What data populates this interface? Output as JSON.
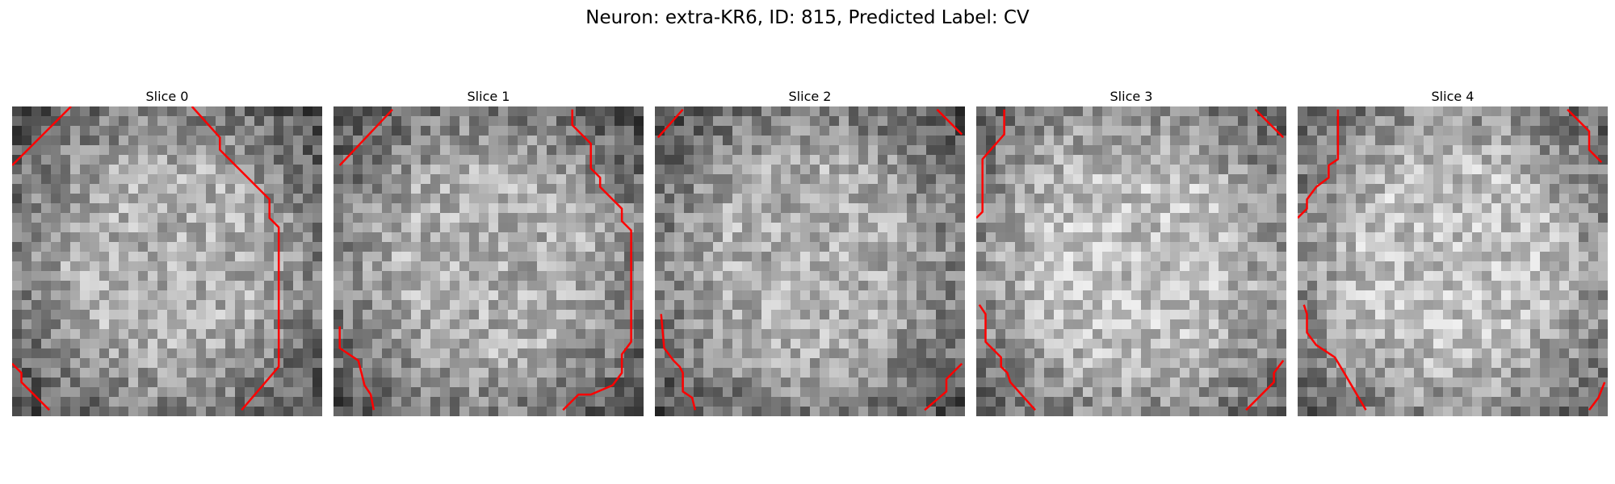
{
  "figure": {
    "title": "Neuron: extra-KR6, ID: 815, Predicted Label: CV"
  },
  "panels": [
    {
      "title": "Slice 0",
      "contours": [
        [
          [
            0.0,
            0.19
          ],
          [
            0.19,
            0.0
          ]
        ],
        [
          [
            0.58,
            0.0
          ],
          [
            0.67,
            0.1
          ],
          [
            0.67,
            0.14
          ],
          [
            0.83,
            0.3
          ],
          [
            0.83,
            0.36
          ],
          [
            0.86,
            0.39
          ],
          [
            0.86,
            0.84
          ],
          [
            0.74,
            0.98
          ]
        ],
        [
          [
            0.0,
            0.83
          ],
          [
            0.03,
            0.86
          ],
          [
            0.03,
            0.89
          ],
          [
            0.12,
            0.98
          ]
        ]
      ]
    },
    {
      "title": "Slice 1",
      "contours": [
        [
          [
            0.02,
            0.19
          ],
          [
            0.19,
            0.01
          ]
        ],
        [
          [
            0.77,
            0.01
          ],
          [
            0.77,
            0.06
          ],
          [
            0.83,
            0.12
          ],
          [
            0.83,
            0.2
          ],
          [
            0.86,
            0.23
          ],
          [
            0.86,
            0.26
          ],
          [
            0.93,
            0.33
          ],
          [
            0.93,
            0.37
          ],
          [
            0.96,
            0.4
          ],
          [
            0.96,
            0.76
          ],
          [
            0.93,
            0.8
          ],
          [
            0.93,
            0.86
          ],
          [
            0.9,
            0.9
          ],
          [
            0.83,
            0.93
          ],
          [
            0.79,
            0.93
          ],
          [
            0.74,
            0.98
          ]
        ],
        [
          [
            0.02,
            0.71
          ],
          [
            0.02,
            0.78
          ],
          [
            0.08,
            0.82
          ],
          [
            0.09,
            0.86
          ],
          [
            0.1,
            0.9
          ],
          [
            0.12,
            0.93
          ],
          [
            0.13,
            0.98
          ]
        ]
      ]
    },
    {
      "title": "Slice 2",
      "contours": [
        [
          [
            0.01,
            0.1
          ],
          [
            0.09,
            0.01
          ]
        ],
        [
          [
            0.91,
            0.01
          ],
          [
            0.99,
            0.09
          ]
        ],
        [
          [
            0.02,
            0.67
          ],
          [
            0.03,
            0.78
          ],
          [
            0.06,
            0.82
          ],
          [
            0.08,
            0.84
          ],
          [
            0.09,
            0.86
          ],
          [
            0.09,
            0.92
          ],
          [
            0.12,
            0.94
          ],
          [
            0.13,
            0.98
          ]
        ],
        [
          [
            0.99,
            0.83
          ],
          [
            0.94,
            0.88
          ],
          [
            0.94,
            0.92
          ],
          [
            0.87,
            0.98
          ]
        ]
      ]
    },
    {
      "title": "Slice 3",
      "contours": [
        [
          [
            0.09,
            0.01
          ],
          [
            0.09,
            0.09
          ],
          [
            0.02,
            0.17
          ],
          [
            0.02,
            0.34
          ],
          [
            0.0,
            0.36
          ]
        ],
        [
          [
            0.9,
            0.01
          ],
          [
            0.99,
            0.1
          ]
        ],
        [
          [
            0.01,
            0.64
          ],
          [
            0.03,
            0.67
          ],
          [
            0.03,
            0.76
          ],
          [
            0.08,
            0.81
          ],
          [
            0.08,
            0.84
          ],
          [
            0.1,
            0.86
          ],
          [
            0.11,
            0.89
          ],
          [
            0.19,
            0.98
          ]
        ],
        [
          [
            0.99,
            0.82
          ],
          [
            0.96,
            0.86
          ],
          [
            0.96,
            0.89
          ],
          [
            0.87,
            0.98
          ]
        ]
      ]
    },
    {
      "title": "Slice 4",
      "contours": [
        [
          [
            0.13,
            0.01
          ],
          [
            0.13,
            0.17
          ],
          [
            0.1,
            0.19
          ],
          [
            0.1,
            0.23
          ],
          [
            0.06,
            0.26
          ],
          [
            0.03,
            0.3
          ],
          [
            0.03,
            0.33
          ],
          [
            0.0,
            0.36
          ]
        ],
        [
          [
            0.87,
            0.01
          ],
          [
            0.94,
            0.08
          ],
          [
            0.94,
            0.14
          ],
          [
            0.98,
            0.18
          ]
        ],
        [
          [
            0.02,
            0.64
          ],
          [
            0.03,
            0.67
          ],
          [
            0.03,
            0.73
          ],
          [
            0.06,
            0.77
          ],
          [
            0.12,
            0.81
          ],
          [
            0.15,
            0.86
          ],
          [
            0.22,
            0.98
          ]
        ],
        [
          [
            0.99,
            0.89
          ],
          [
            0.97,
            0.94
          ],
          [
            0.94,
            0.98
          ]
        ]
      ]
    }
  ]
}
